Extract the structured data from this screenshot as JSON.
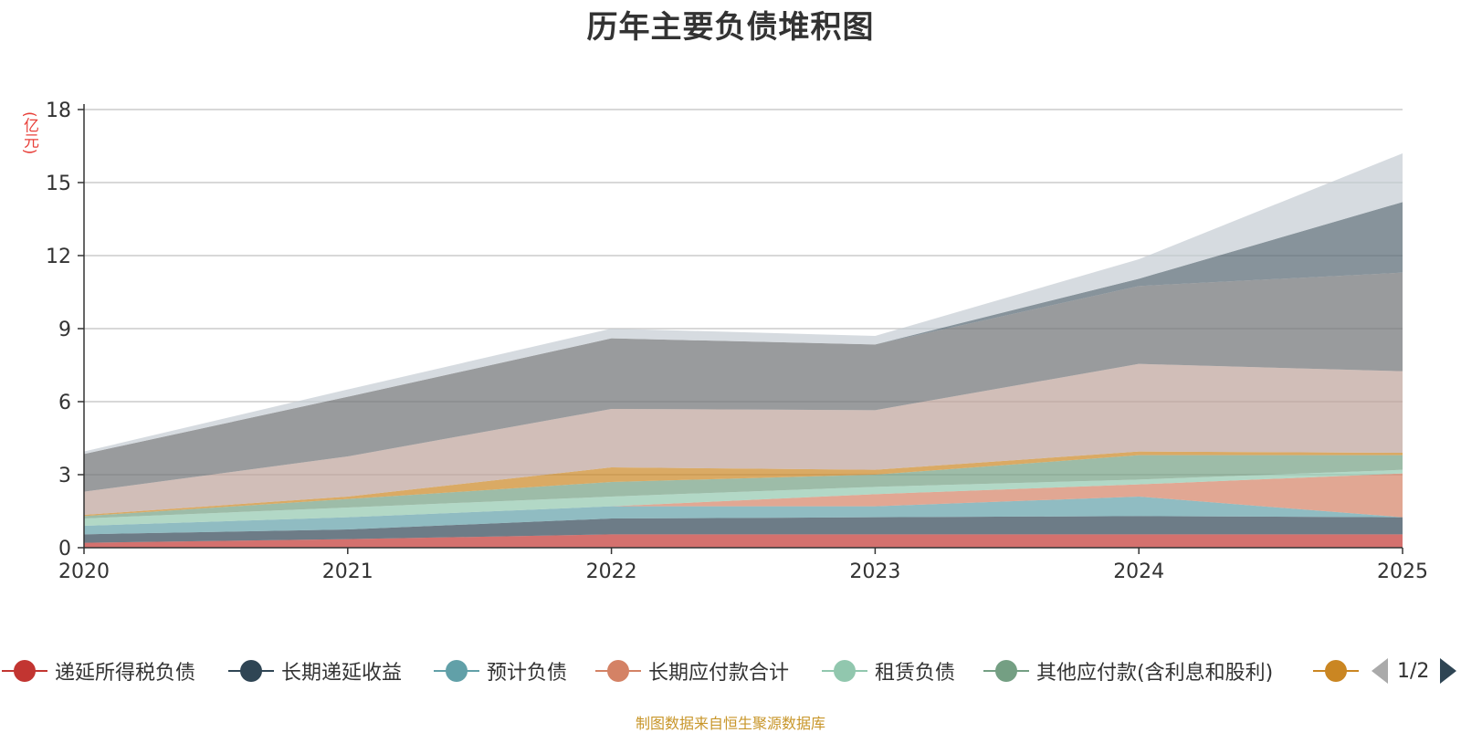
{
  "chart_data": {
    "type": "area",
    "stacked": true,
    "title": "历年主要负债堆积图",
    "ylabel": "(亿元)",
    "xlabel": "",
    "ylim": [
      0,
      18
    ],
    "yticks": [
      0,
      3,
      6,
      9,
      12,
      15,
      18
    ],
    "categories": [
      "2020",
      "2021",
      "2022",
      "2023",
      "2024",
      "2025"
    ],
    "series": [
      {
        "name": "递延所得税负债",
        "color": "#c23531",
        "values": [
          0.2,
          0.35,
          0.55,
          0.55,
          0.55,
          0.55
        ]
      },
      {
        "name": "长期递延收益",
        "color": "#2f4554",
        "values": [
          0.35,
          0.4,
          0.65,
          0.7,
          0.75,
          0.7
        ]
      },
      {
        "name": "预计负债",
        "color": "#61a0a8",
        "values": [
          0.35,
          0.5,
          0.5,
          0.45,
          0.8,
          0.0
        ]
      },
      {
        "name": "长期应付款合计",
        "color": "#d48265",
        "values": [
          0.0,
          0.0,
          0.0,
          0.5,
          0.5,
          1.8
        ]
      },
      {
        "name": "租赁负债",
        "color": "#91c7ae",
        "values": [
          0.3,
          0.4,
          0.4,
          0.3,
          0.2,
          0.15
        ]
      },
      {
        "name": "其他应付款(含利息和股利)",
        "color": "#749f83",
        "values": [
          0.1,
          0.35,
          0.6,
          0.5,
          1.0,
          0.6
        ]
      },
      {
        "name": "",
        "color": "#ca8622",
        "values": [
          0.05,
          0.1,
          0.6,
          0.2,
          0.15,
          0.1
        ]
      },
      {
        "name": "",
        "color": "#bda29a",
        "values": [
          0.95,
          1.65,
          2.4,
          2.45,
          3.6,
          3.35
        ]
      },
      {
        "name": "",
        "color": "#6e7074",
        "values": [
          1.55,
          2.45,
          2.9,
          2.7,
          3.2,
          4.05
        ]
      },
      {
        "name": "",
        "color": "#546570",
        "values": [
          0.0,
          0.0,
          0.0,
          0.0,
          0.3,
          2.9
        ]
      },
      {
        "name": "",
        "color": "#c4ccd3",
        "values": [
          0.1,
          0.3,
          0.4,
          0.35,
          0.8,
          2.0
        ]
      }
    ]
  },
  "legend": {
    "items": [
      {
        "label": "递延所得税负债",
        "color": "#c23531"
      },
      {
        "label": "长期递延收益",
        "color": "#2f4554"
      },
      {
        "label": "预计负债",
        "color": "#61a0a8"
      },
      {
        "label": "长期应付款合计",
        "color": "#d48265"
      },
      {
        "label": "租赁负债",
        "color": "#91c7ae"
      },
      {
        "label": "其他应付款(含利息和股利)",
        "color": "#749f83"
      },
      {
        "label": "",
        "color": "#ca8622"
      }
    ],
    "pager": "1/2"
  },
  "source": "制图数据来自恒生聚源数据库"
}
